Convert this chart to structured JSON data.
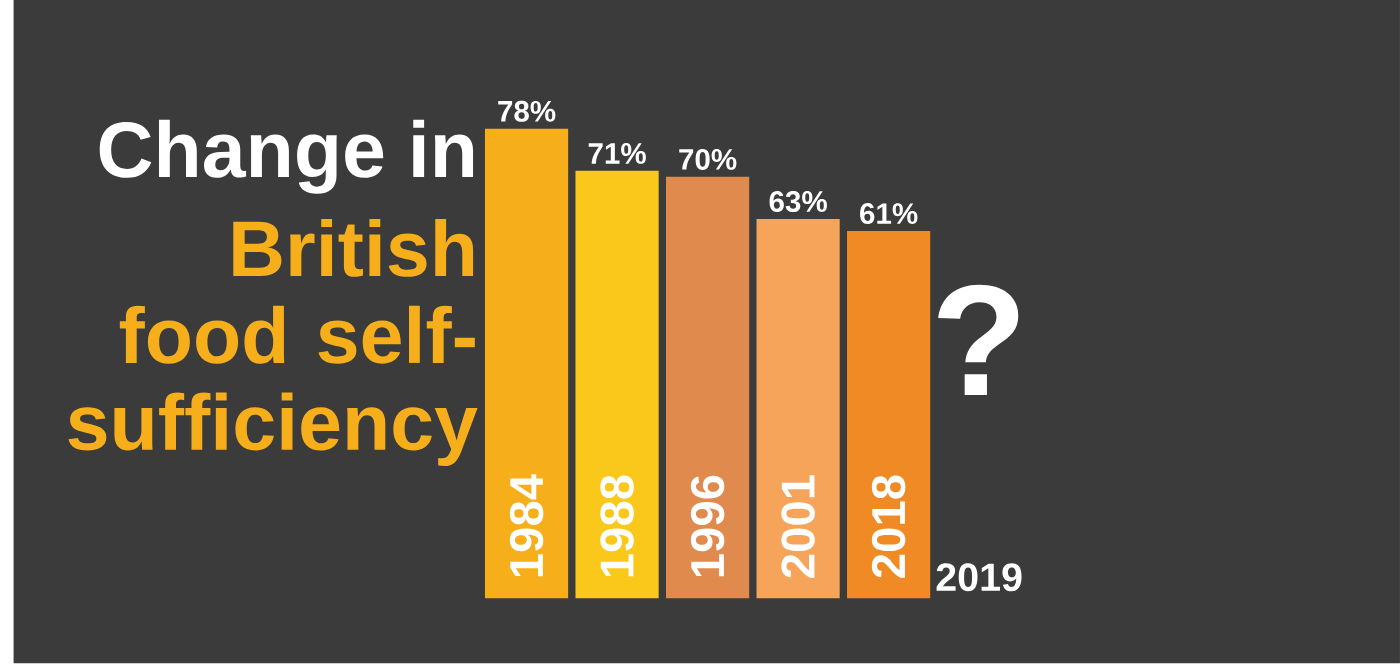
{
  "chart_data": {
    "type": "bar",
    "title": "Change in",
    "subtitle": "British food self-sufficiency",
    "categories": [
      "1984",
      "1988",
      "1996",
      "2001",
      "2018",
      "2019"
    ],
    "values": [
      78,
      71,
      70,
      63,
      61,
      null
    ],
    "colors": [
      "#f6ae1a",
      "#f9c81a",
      "#e08a4e",
      "#f7a45b",
      "#f08a24",
      "#f08a24"
    ],
    "value_labels": [
      "78%",
      "71%",
      "70%",
      "63%",
      "61%",
      null
    ],
    "annotations": [
      "?"
    ]
  }
}
